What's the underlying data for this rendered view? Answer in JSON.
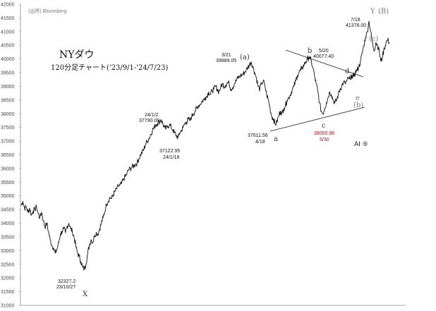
{
  "source": "(出所) Bloomberg",
  "chart_data": {
    "type": "line",
    "title": "NYダウ",
    "subtitle": "120分足チャート('23/9/1-'24/7/23)",
    "xlabel": "",
    "ylabel": "",
    "ylim": [
      31000,
      42000
    ],
    "yticks": [
      "31000",
      "31500",
      "32000",
      "32500",
      "33000",
      "33500",
      "34000",
      "34500",
      "35000",
      "35500",
      "36000",
      "36500",
      "37000",
      "37500",
      "38000",
      "38500",
      "39000",
      "39500",
      "40000",
      "40500",
      "41000",
      "41500",
      "42000"
    ],
    "grid": false,
    "series": [
      {
        "values": [
          34650,
          34800,
          34550,
          34600,
          34400,
          34550,
          34300,
          34450,
          34500,
          34600,
          34350,
          34200,
          34400,
          34100,
          33850,
          34000,
          33700,
          33400,
          33200,
          33100,
          32900,
          33050,
          33300,
          33600,
          33700,
          33800,
          33650,
          33900,
          34000,
          33800,
          33700,
          33500,
          33200,
          32900,
          32800,
          32600,
          32400,
          32327,
          32500,
          32900,
          33200,
          33400,
          33300,
          33550,
          33650,
          33600,
          33800,
          34000,
          34200,
          34400,
          34700,
          34800,
          34950,
          34900,
          35050,
          35150,
          35250,
          35350,
          35400,
          35450,
          35600,
          35700,
          35800,
          35950,
          36000,
          36050,
          36100,
          36150,
          36200,
          36350,
          36500,
          36600,
          36700,
          36900,
          37000,
          37100,
          37250,
          37400,
          37500,
          37600,
          37650,
          37700,
          37790,
          37650,
          37500,
          37450,
          37550,
          37600,
          37500,
          37400,
          37300,
          37200,
          37123,
          37300,
          37400,
          37500,
          37650,
          37700,
          37800,
          37750,
          37900,
          38000,
          38100,
          38200,
          38300,
          38350,
          38450,
          38500,
          38600,
          38650,
          38800,
          38700,
          38850,
          38900,
          39000,
          38900,
          38800,
          38950,
          39100,
          39000,
          39050,
          39150,
          39100,
          38900,
          38950,
          39100,
          39200,
          39300,
          39350,
          39400,
          39450,
          39500,
          39600,
          39700,
          39800,
          39889,
          39700,
          39500,
          39300,
          39000,
          38900,
          39100,
          39200,
          39000,
          38700,
          38500,
          38200,
          37900,
          37800,
          37612,
          37700,
          37900,
          38100,
          38000,
          38200,
          38300,
          38500,
          38600,
          38700,
          38900,
          39000,
          39200,
          39400,
          39500,
          39600,
          39700,
          39800,
          39900,
          40000,
          40077,
          39950,
          39700,
          39400,
          39100,
          38800,
          38400,
          38100,
          38001,
          38200,
          38400,
          38600,
          38800,
          38700,
          38500,
          38400,
          38500,
          38700,
          38900,
          39000,
          39150,
          39100,
          39200,
          39300,
          39250,
          39400,
          39350,
          39500,
          39600,
          39700,
          39900,
          40200,
          40500,
          40800,
          41000,
          41376,
          41000,
          40600,
          40300,
          40600,
          40500,
          40300,
          39900,
          40100,
          40400,
          40600,
          40700,
          40600
        ]
      }
    ],
    "annotations": [
      {
        "date": "23/10/27",
        "value": "32327.2"
      },
      {
        "date": "24/1/2",
        "value": "37790.08"
      },
      {
        "date": "24/1/18",
        "value": "37122.95"
      },
      {
        "date": "3/21",
        "value": "39889.05"
      },
      {
        "date": "4/18",
        "value": "37611.56"
      },
      {
        "date": "5/20",
        "value": "40077.40"
      },
      {
        "date": "5/30",
        "value": "38000.96"
      },
      {
        "date": "7/18",
        "value": "41376.00"
      }
    ],
    "wave_labels": [
      "X",
      "(a)",
      "a",
      "b",
      "c",
      "d",
      "e",
      "(b)",
      "(c)",
      "Y",
      "(B)"
    ],
    "line_color": "#111111",
    "trendline_color": "#222222"
  },
  "ai_label": "AI ⑤"
}
